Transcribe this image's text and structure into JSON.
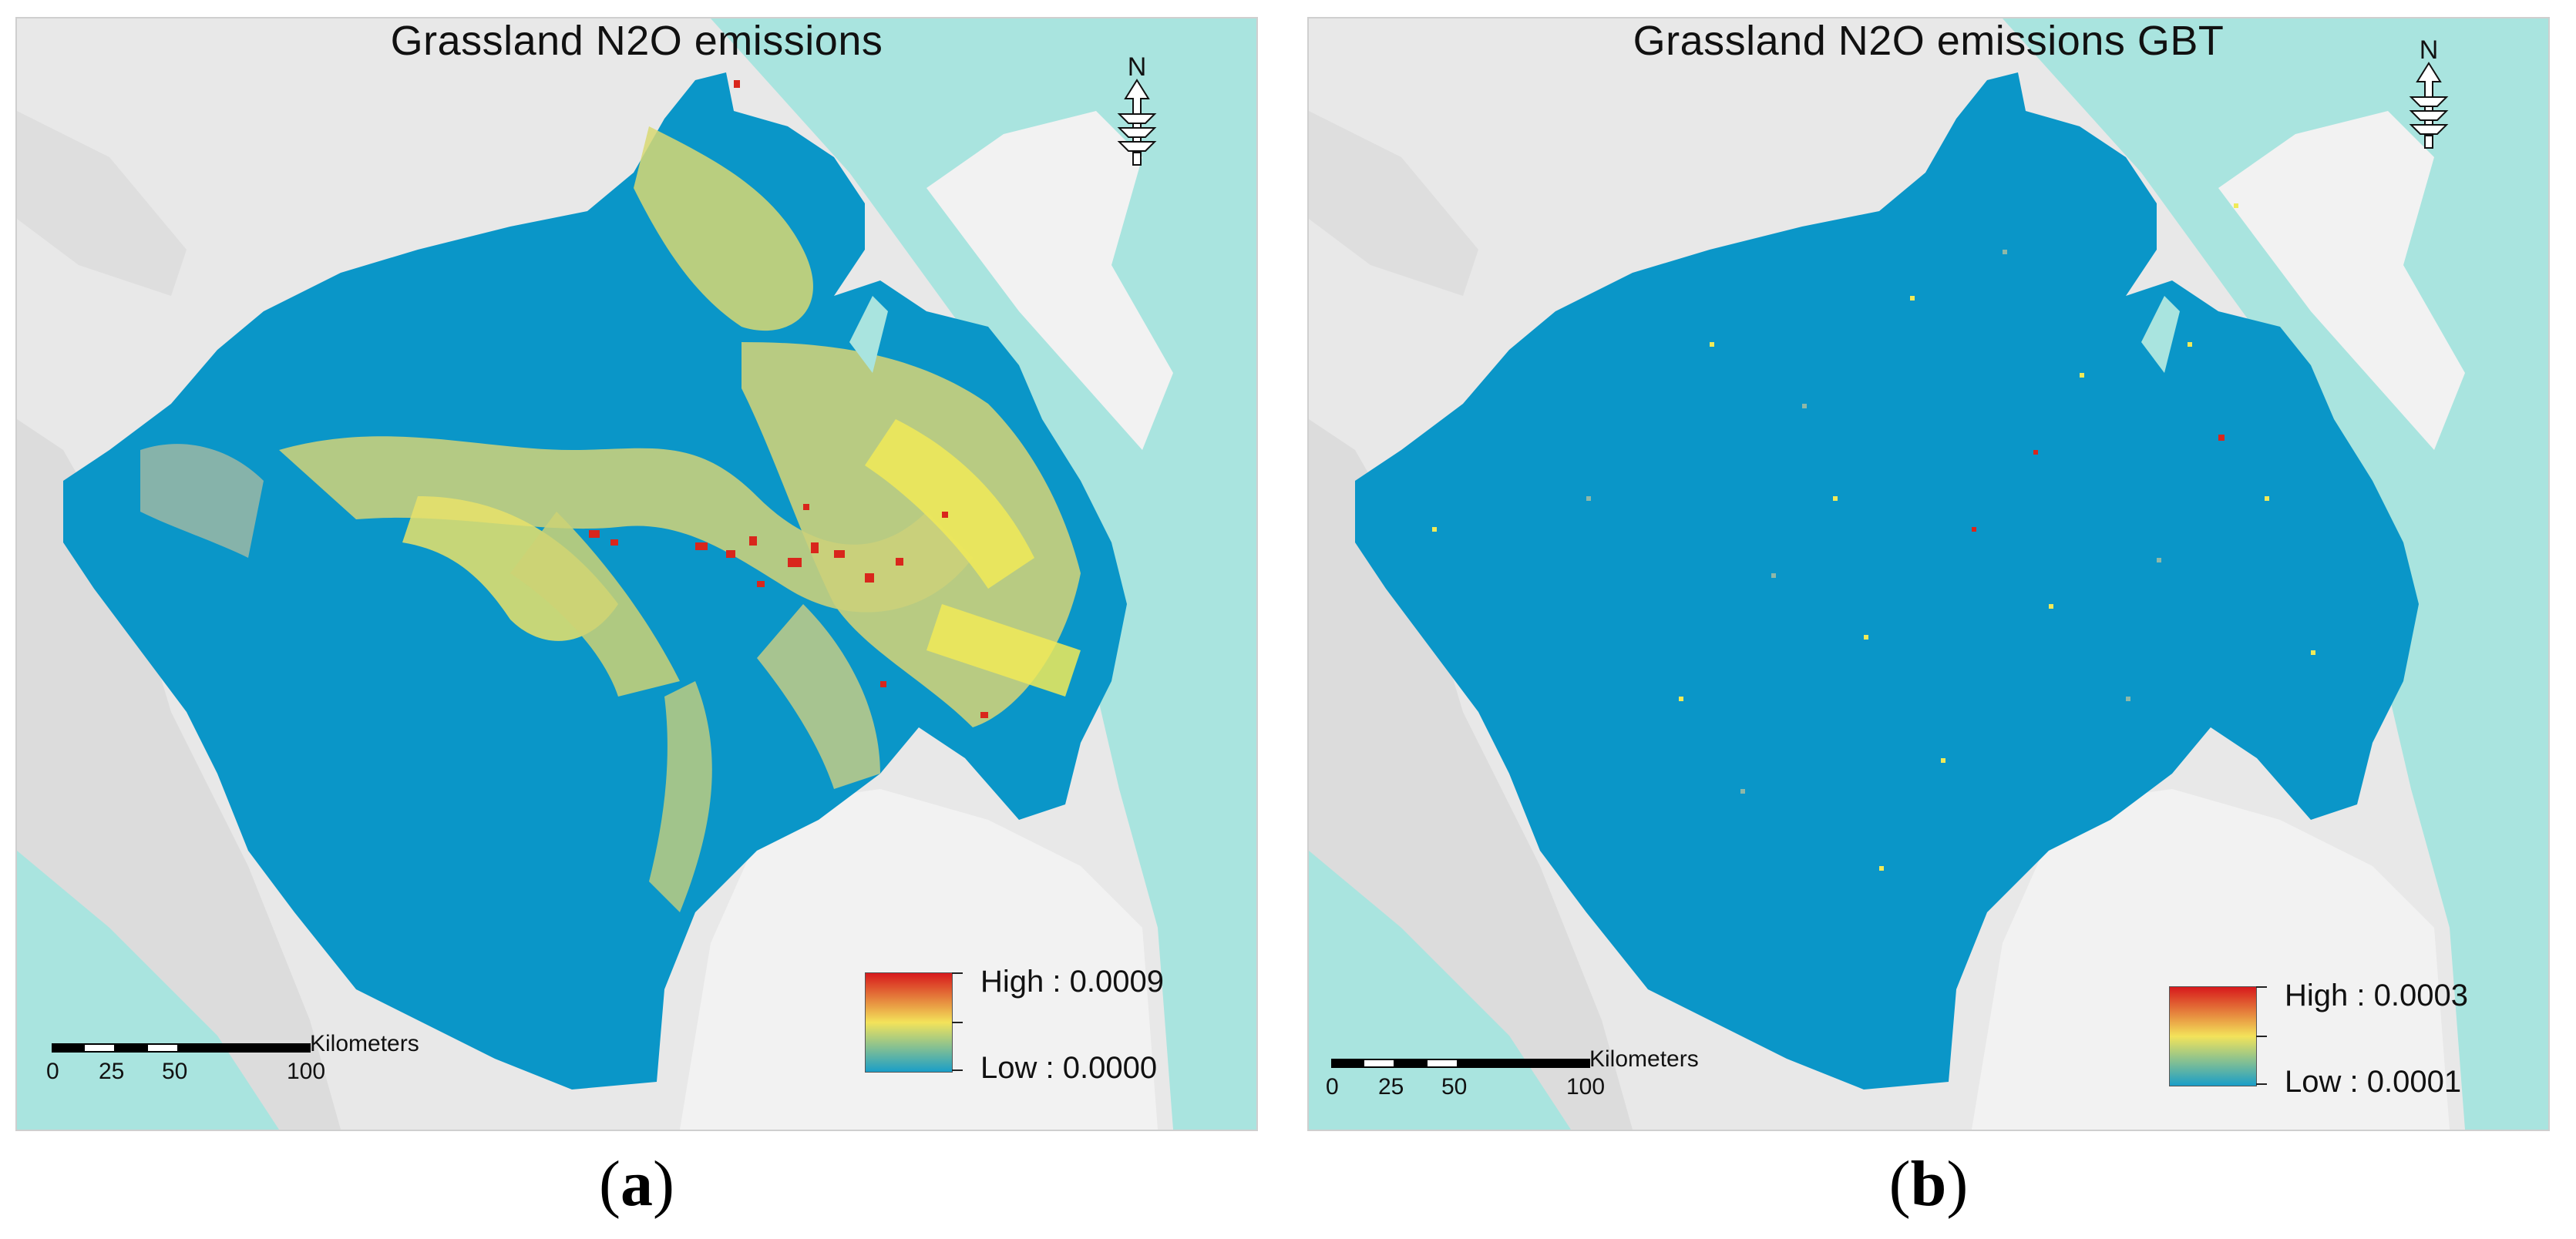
{
  "panels": [
    {
      "title": "Grassland N2O emissions",
      "label_open": "(",
      "label_letter": "a",
      "label_close": ")",
      "legend": {
        "high": "High : 0.0009",
        "low": "Low : 0.0000",
        "colors": [
          "#d7191c",
          "#f3e35a",
          "#1a9ec8"
        ]
      },
      "scale": {
        "units": "Kilometers",
        "ticks": [
          "0",
          "25",
          "50",
          "100"
        ]
      },
      "north": "N"
    },
    {
      "title": "Grassland N2O emissions GBT",
      "label_open": "(",
      "label_letter": "b",
      "label_close": ")",
      "legend": {
        "high": "High : 0.0003",
        "low": "Low : 0.0001",
        "colors": [
          "#d7191c",
          "#f3e35a",
          "#1a9ec8"
        ]
      },
      "scale": {
        "units": "Kilometers",
        "ticks": [
          "0",
          "25",
          "50",
          "100"
        ]
      },
      "north": "N"
    }
  ],
  "colors": {
    "sea": "#a9e4df",
    "land": "#e8e8e8",
    "region_low": "#0a96c8",
    "mid": "#8fb8a8",
    "yellow": "#f0ea58",
    "red": "#d9261c"
  }
}
